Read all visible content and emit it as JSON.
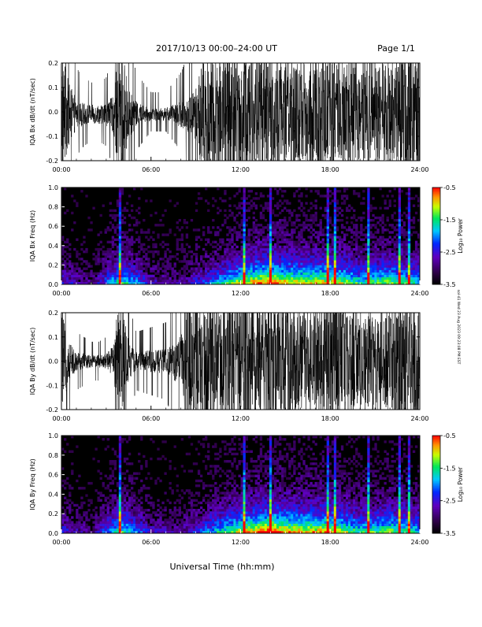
{
  "header": {
    "title": "2017/10/13  00:00–24:00 UT",
    "page_label": "Page 1/1"
  },
  "footer": {
    "xlabel": "Universal Time (hh:mm)"
  },
  "side_note": "sol-41 Wed 23 Aug 2023 09:23:08 PM EST",
  "chart_data": [
    {
      "type": "line",
      "title": "",
      "ylabel": "IQA Bx dB/dt (nT/sec)",
      "xlabel": "",
      "xlim": [
        0,
        24
      ],
      "ylim": [
        -0.2,
        0.2
      ],
      "x_tick_labels": [
        "00:00",
        "06:00",
        "12:00",
        "18:00",
        "24:00"
      ],
      "y_tick_labels": [
        "0.2",
        "0.1",
        "0.0",
        "-0.1",
        "-0.2"
      ],
      "envelope_hours": [
        0,
        0.5,
        1.0,
        1.5,
        2.0,
        2.5,
        3.0,
        3.5,
        3.8,
        4.1,
        4.5,
        5.0,
        6.0,
        7.0,
        8.0,
        9.0,
        9.5,
        10.0,
        11.0,
        12.0,
        13.0,
        14.0,
        15.0,
        16.0,
        17.0,
        18.0,
        19.0,
        20.0,
        21.0,
        22.0,
        23.0,
        24.0
      ],
      "envelope_amplitude": [
        0.2,
        0.1,
        0.045,
        0.035,
        0.03,
        0.03,
        0.035,
        0.06,
        0.2,
        0.2,
        0.08,
        0.04,
        0.02,
        0.02,
        0.04,
        0.08,
        0.2,
        0.2,
        0.2,
        0.2,
        0.2,
        0.18,
        0.16,
        0.16,
        0.17,
        0.18,
        0.16,
        0.15,
        0.16,
        0.17,
        0.2,
        0.2
      ]
    },
    {
      "type": "heatmap",
      "title": "",
      "ylabel": "IQA Bx Freq (Hz)",
      "xlabel": "",
      "xlim": [
        0,
        24
      ],
      "ylim": [
        0,
        1.0
      ],
      "x_tick_labels": [
        "00:00",
        "06:00",
        "12:00",
        "18:00",
        "24:00"
      ],
      "y_tick_labels": [
        "1.0",
        "0.8",
        "0.6",
        "0.4",
        "0.2",
        "0.0"
      ],
      "colorbar": {
        "label": "Log₁₀ Power",
        "range": [
          -3.5,
          -0.5
        ],
        "tick_labels": [
          "-0.5",
          "-1.5",
          "-2.5",
          "-3.5"
        ]
      },
      "activity_hours": [
        0,
        2,
        4,
        6,
        8,
        10,
        12,
        14,
        16,
        18,
        20,
        22,
        24
      ],
      "activity_level": [
        0.3,
        0.15,
        0.6,
        0.25,
        0.2,
        0.4,
        0.7,
        0.85,
        0.7,
        0.75,
        0.55,
        0.65,
        0.5
      ],
      "spike_hours": [
        3.9,
        12.3,
        14.0,
        17.9,
        18.3,
        20.5,
        22.7,
        23.3
      ]
    },
    {
      "type": "line",
      "title": "",
      "ylabel": "IQA By dB/dt (nT/sec)",
      "xlabel": "",
      "xlim": [
        0,
        24
      ],
      "ylim": [
        -0.2,
        0.2
      ],
      "x_tick_labels": [
        "00:00",
        "06:00",
        "12:00",
        "18:00",
        "24:00"
      ],
      "y_tick_labels": [
        "0.2",
        "0.1",
        "0.0",
        "-0.1",
        "-0.2"
      ],
      "envelope_hours": [
        0,
        0.5,
        1.0,
        1.5,
        2.0,
        2.5,
        3.0,
        3.5,
        3.8,
        4.1,
        4.5,
        5.0,
        6.0,
        7.0,
        8.0,
        8.5,
        9.0,
        10.0,
        11.0,
        12.0,
        13.0,
        14.0,
        15.0,
        16.0,
        17.0,
        18.0,
        19.0,
        20.0,
        21.0,
        22.0,
        22.5,
        24.0
      ],
      "envelope_amplitude": [
        0.16,
        0.06,
        0.03,
        0.025,
        0.02,
        0.02,
        0.025,
        0.05,
        0.2,
        0.2,
        0.06,
        0.03,
        0.035,
        0.04,
        0.08,
        0.2,
        0.2,
        0.2,
        0.2,
        0.2,
        0.2,
        0.19,
        0.17,
        0.15,
        0.16,
        0.2,
        0.17,
        0.15,
        0.14,
        0.16,
        0.2,
        0.2
      ]
    },
    {
      "type": "heatmap",
      "title": "",
      "ylabel": "IQA By Freq (Hz)",
      "xlabel": "",
      "xlim": [
        0,
        24
      ],
      "ylim": [
        0,
        1.0
      ],
      "x_tick_labels": [
        "00:00",
        "06:00",
        "12:00",
        "18:00",
        "24:00"
      ],
      "y_tick_labels": [
        "1.0",
        "0.8",
        "0.6",
        "0.4",
        "0.2",
        "0.0"
      ],
      "colorbar": {
        "label": "Log₁₀ Power",
        "range": [
          -3.5,
          -0.5
        ],
        "tick_labels": [
          "-0.5",
          "-1.5",
          "-2.5",
          "-3.5"
        ]
      },
      "activity_hours": [
        0,
        2,
        4,
        6,
        8,
        10,
        12,
        14,
        16,
        18,
        20,
        22,
        24
      ],
      "activity_level": [
        0.3,
        0.15,
        0.6,
        0.25,
        0.2,
        0.45,
        0.7,
        0.85,
        0.75,
        0.75,
        0.55,
        0.65,
        0.5
      ],
      "spike_hours": [
        3.9,
        12.3,
        14.0,
        17.9,
        18.3,
        20.5,
        22.7,
        23.3
      ]
    }
  ]
}
